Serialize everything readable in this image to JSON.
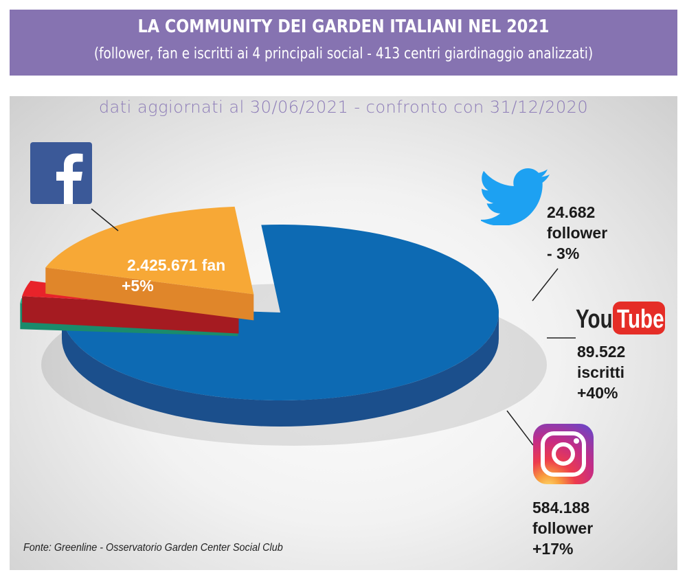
{
  "header": {
    "title": "LA COMMUNITY DEI GARDEN ITALIANI NEL 2021",
    "subtitle": "(follower, fan e iscritti ai 4 principali social - 413 centri giardinaggio analizzati)"
  },
  "dates_note": "dati aggiornati al 30/06/2021 - confronto con 31/12/2020",
  "source": "Fonte: Greenline - Osservatorio Garden Center Social Club",
  "labels": {
    "facebook": {
      "line1": "2.425.671 fan",
      "line2": "+5%"
    },
    "twitter": {
      "line1": "24.682",
      "line2": "follower",
      "line3": "- 3%"
    },
    "youtube": {
      "line1": "89.522",
      "line2": "iscritti",
      "line3": "+40%"
    },
    "instagram": {
      "line1": "584.188",
      "line2": "follower",
      "line3": "+17%"
    }
  },
  "logos": {
    "facebook": "facebook-logo-icon",
    "twitter": "twitter-bird-icon",
    "youtube": {
      "icon": "youtube-logo-icon",
      "text1": "You",
      "text2": "Tube"
    },
    "instagram": "instagram-logo-icon"
  },
  "colors": {
    "header_bg": "#8673b1",
    "dates_text": "#8c7bb7",
    "facebook": "#0d6ab3",
    "twitter": "#2bb08b",
    "youtube": "#e8232a",
    "instagram": "#f7a836"
  },
  "chart_data": {
    "type": "pie",
    "style": "3d-exploded",
    "categories": [
      "Facebook",
      "Twitter",
      "YouTube",
      "Instagram"
    ],
    "values": [
      2425671,
      24682,
      89522,
      584188
    ],
    "units": [
      "fan",
      "follower",
      "iscritti",
      "follower"
    ],
    "change_pct": [
      5,
      -3,
      40,
      17
    ],
    "colors": [
      "#0d6ab3",
      "#2bb08b",
      "#e8232a",
      "#f7a836"
    ],
    "side_colors": [
      "#1b4f8c",
      "#1a8b6c",
      "#a51b21",
      "#e0862a"
    ],
    "explode": [
      0,
      1,
      1,
      1
    ],
    "start_angle_deg": -95,
    "legend": "none"
  }
}
